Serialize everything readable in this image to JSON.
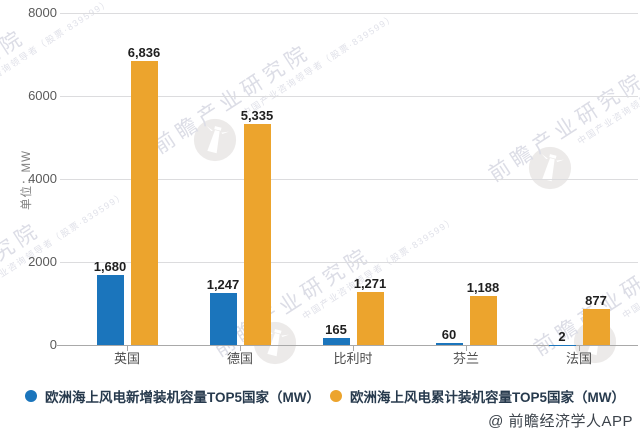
{
  "chart_data": {
    "type": "bar",
    "title": "",
    "unit_label": "单位：MW",
    "categories": [
      "英国",
      "德国",
      "比利时",
      "芬兰",
      "法国"
    ],
    "series": [
      {
        "name": "欧洲海上风电新增装机容量TOP5国家（MW）",
        "color": "#1B75BC",
        "values": [
          1680,
          1247,
          165,
          60,
          2
        ]
      },
      {
        "name": "欧洲海上风电累计装机容量TOP5国家（MW）",
        "color": "#ECA42D",
        "values": [
          6836,
          5335,
          1271,
          1188,
          877
        ]
      }
    ],
    "ylim": [
      0,
      8000
    ],
    "yticks": [
      0,
      2000,
      4000,
      6000,
      8000
    ],
    "grid": true,
    "legend_position": "bottom",
    "value_labels_shown": true
  },
  "footer": {
    "credit": "@ 前瞻经济学人APP"
  },
  "watermark": {
    "brand": "前瞻产业研究院",
    "tagline": "中国产业咨询领导者（股票·839599）",
    "logo": "lighthouse-icon"
  },
  "colors": {
    "new_capacity_blue": "#1B75BC",
    "cumulative_orange": "#ECA42D",
    "gridline": "#DCDCDE",
    "axis": "#A9A9A9",
    "watermark": "#DCDDE6"
  }
}
